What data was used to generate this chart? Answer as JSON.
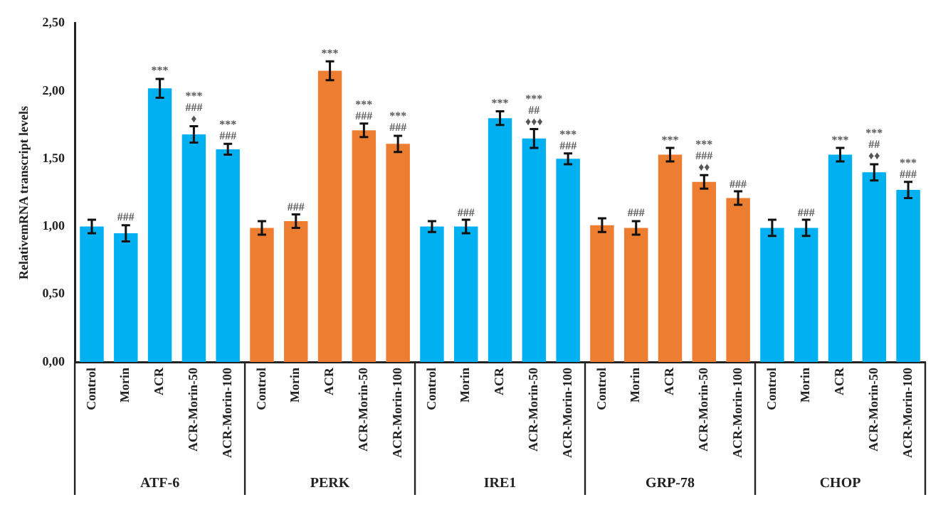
{
  "chart_data": {
    "type": "bar",
    "ylabel": "RelativemRNA transcript levels",
    "categories": [
      "Control",
      "Morin",
      "ACR",
      "ACR-Morin-50",
      "ACR-Morin-100",
      "Control",
      "Morin",
      "ACR",
      "ACR-Morin-50",
      "ACR-Morin-100",
      "Control",
      "Morin",
      "ACR",
      "ACR-Morin-50",
      "ACR-Morin-100",
      "Control",
      "Morin",
      "ACR",
      "ACR-Morin-50",
      "ACR-Morin-100",
      "Control",
      "Morin",
      "ACR",
      "ACR-Morin-50",
      "ACR-Morin-100"
    ],
    "values": [
      1.0,
      0.95,
      2.02,
      1.68,
      1.57,
      0.99,
      1.04,
      2.15,
      1.71,
      1.61,
      1.0,
      1.0,
      1.8,
      1.65,
      1.5,
      1.01,
      0.99,
      1.53,
      1.33,
      1.21,
      0.99,
      0.99,
      1.53,
      1.4,
      1.27
    ],
    "errors": [
      0.05,
      0.06,
      0.07,
      0.06,
      0.04,
      0.05,
      0.05,
      0.07,
      0.05,
      0.06,
      0.04,
      0.05,
      0.05,
      0.07,
      0.04,
      0.05,
      0.05,
      0.05,
      0.05,
      0.05,
      0.06,
      0.06,
      0.05,
      0.06,
      0.06
    ],
    "colors": [
      "#00b0f0",
      "#00b0f0",
      "#00b0f0",
      "#00b0f0",
      "#00b0f0",
      "#ed7d31",
      "#ed7d31",
      "#ed7d31",
      "#ed7d31",
      "#ed7d31",
      "#00b0f0",
      "#00b0f0",
      "#00b0f0",
      "#00b0f0",
      "#00b0f0",
      "#ed7d31",
      "#ed7d31",
      "#ed7d31",
      "#ed7d31",
      "#ed7d31",
      "#00b0f0",
      "#00b0f0",
      "#00b0f0",
      "#00b0f0",
      "#00b0f0"
    ],
    "value_labels": [
      null,
      "###",
      "***",
      "***\n###\n♦",
      "***\n###",
      null,
      "###",
      "***",
      "***\n###",
      "***\n###",
      null,
      "###",
      "***",
      "***\n##\n♦♦♦",
      "***\n###",
      null,
      "###",
      "***",
      "***\n###\n♦♦",
      "###",
      null,
      "###",
      "***",
      "***\n##\n♦♦",
      "***\n###"
    ],
    "annotations": [
      "ATF-6",
      "PERK",
      "IRE1",
      "GRP-78",
      "CHOP"
    ],
    "ylim": [
      0,
      2.5
    ],
    "yticks": [
      {
        "value": 0,
        "label": "0,00"
      },
      {
        "value": 0.5,
        "label": "0,50"
      },
      {
        "value": 1,
        "label": "1,00"
      },
      {
        "value": 1.5,
        "label": "1,50"
      },
      {
        "value": 2,
        "label": "2,00"
      },
      {
        "value": 2.5,
        "label": "2,50"
      }
    ],
    "grid": false,
    "legend": false
  }
}
